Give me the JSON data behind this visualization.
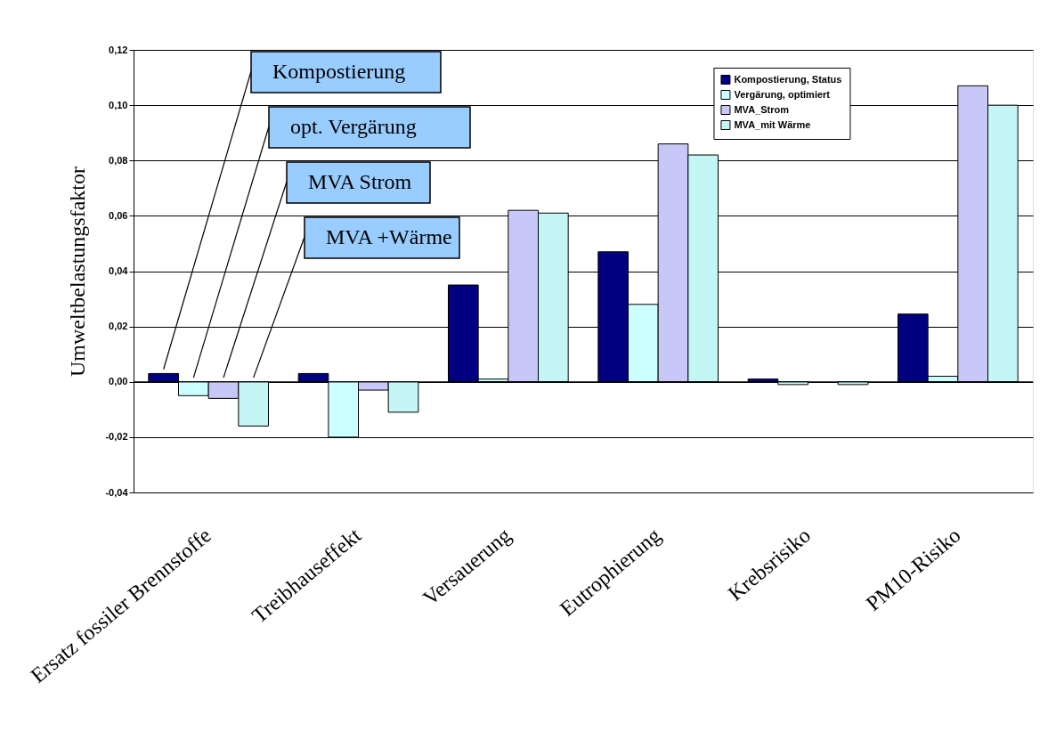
{
  "chart_data": {
    "type": "bar",
    "ylabel": "Umweltbelastungsfaktor",
    "categories": [
      "Ersatz fossiler Brennstoffe",
      "Treibhauseffekt",
      "Versauerung",
      "Eutrophierung",
      "Krebsrisiko",
      "PM10-Risiko"
    ],
    "series": [
      {
        "name": "Kompostierung, Status",
        "color": "#000080",
        "values": [
          0.003,
          0.003,
          0.035,
          0.047,
          0.001,
          0.0245
        ]
      },
      {
        "name": "Vergärung, optimiert",
        "color": "#ccffff",
        "values": [
          -0.005,
          -0.02,
          0.001,
          0.028,
          -0.001,
          0.002
        ]
      },
      {
        "name": "MVA_Strom",
        "color": "#c8c8f8",
        "values": [
          -0.006,
          -0.003,
          0.062,
          0.086,
          null,
          0.107
        ]
      },
      {
        "name": "MVA_mit Wärme",
        "color": "#c4f6f6",
        "values": [
          -0.016,
          -0.011,
          0.061,
          0.082,
          -0.001,
          0.1
        ]
      }
    ],
    "ylim": [
      -0.04,
      0.12
    ],
    "yticks": [
      {
        "value": -0.04,
        "label": "-0,04"
      },
      {
        "value": -0.02,
        "label": "-0,02"
      },
      {
        "value": 0,
        "label": "0,00"
      },
      {
        "value": 0.02,
        "label": "0,02"
      },
      {
        "value": 0.04,
        "label": "0,04"
      },
      {
        "value": 0.06,
        "label": "0,06"
      },
      {
        "value": 0.08,
        "label": "0,08"
      },
      {
        "value": 0.1,
        "label": "0,10"
      },
      {
        "value": 0.12,
        "label": "0,12"
      }
    ],
    "grid": "y",
    "legend": "top right",
    "annotations": [
      "Kompostierung",
      "opt. Vergärung",
      "MVA Strom",
      "MVA +Wärme"
    ]
  }
}
